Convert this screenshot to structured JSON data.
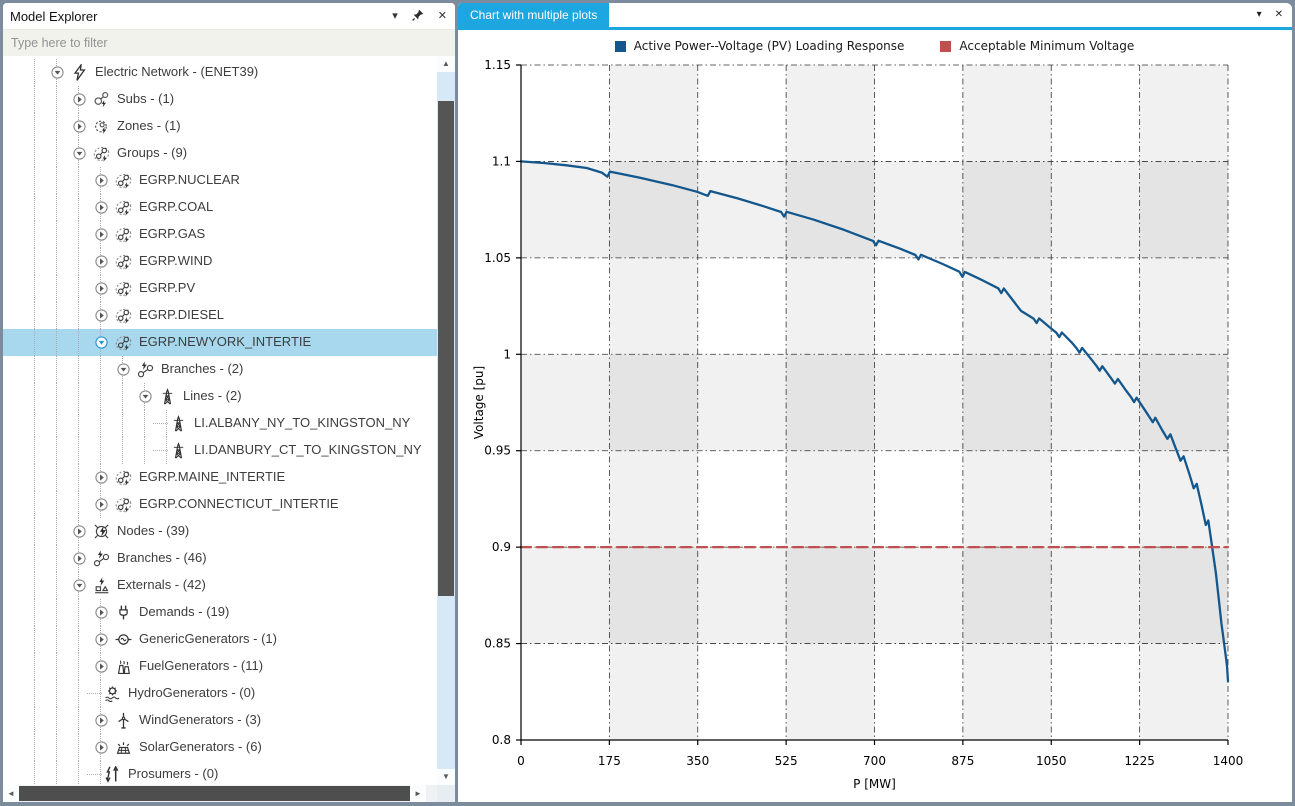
{
  "sidebar": {
    "title": "Model Explorer",
    "filter_placeholder": "Type here to filter",
    "controls": {
      "dropdown_glyph": "▾",
      "close_glyph": "✕"
    },
    "selection_color": "#a8d8ee",
    "tree": [
      {
        "label": "Electric Network - (ENET39)",
        "level": 0,
        "icon": "electric-network",
        "state": "expanded"
      },
      {
        "label": "Subs - (1)",
        "level": 1,
        "icon": "subs",
        "state": "collapsed"
      },
      {
        "label": "Zones - (1)",
        "level": 1,
        "icon": "zones",
        "state": "collapsed"
      },
      {
        "label": "Groups - (9)",
        "level": 1,
        "icon": "groups",
        "state": "expanded"
      },
      {
        "label": "EGRP.NUCLEAR",
        "level": 2,
        "icon": "group",
        "state": "collapsed"
      },
      {
        "label": "EGRP.COAL",
        "level": 2,
        "icon": "group",
        "state": "collapsed"
      },
      {
        "label": "EGRP.GAS",
        "level": 2,
        "icon": "group",
        "state": "collapsed"
      },
      {
        "label": "EGRP.WIND",
        "level": 2,
        "icon": "group",
        "state": "collapsed"
      },
      {
        "label": "EGRP.PV",
        "level": 2,
        "icon": "group",
        "state": "collapsed"
      },
      {
        "label": "EGRP.DIESEL",
        "level": 2,
        "icon": "group",
        "state": "collapsed"
      },
      {
        "label": "EGRP.NEWYORK_INTERTIE",
        "level": 2,
        "icon": "group",
        "state": "expanded",
        "selected": true
      },
      {
        "label": "Branches - (2)",
        "level": 3,
        "icon": "branches",
        "state": "expanded"
      },
      {
        "label": "Lines - (2)",
        "level": 4,
        "icon": "line",
        "state": "expanded"
      },
      {
        "label": "LI.ALBANY_NY_TO_KINGSTON_NY",
        "level": 5,
        "icon": "line",
        "state": "leaf"
      },
      {
        "label": "LI.DANBURY_CT_TO_KINGSTON_NY",
        "level": 5,
        "icon": "line",
        "state": "leaf"
      },
      {
        "label": "EGRP.MAINE_INTERTIE",
        "level": 2,
        "icon": "group",
        "state": "collapsed"
      },
      {
        "label": "EGRP.CONNECTICUT_INTERTIE",
        "level": 2,
        "icon": "group",
        "state": "collapsed"
      },
      {
        "label": "Nodes - (39)",
        "level": 1,
        "icon": "nodes",
        "state": "collapsed"
      },
      {
        "label": "Branches - (46)",
        "level": 1,
        "icon": "branches",
        "state": "collapsed"
      },
      {
        "label": "Externals - (42)",
        "level": 1,
        "icon": "externals",
        "state": "expanded"
      },
      {
        "label": "Demands - (19)",
        "level": 2,
        "icon": "demand",
        "state": "collapsed"
      },
      {
        "label": "GenericGenerators - (1)",
        "level": 2,
        "icon": "generic-generator",
        "state": "collapsed"
      },
      {
        "label": "FuelGenerators - (11)",
        "level": 2,
        "icon": "fuel-generator",
        "state": "collapsed"
      },
      {
        "label": "HydroGenerators - (0)",
        "level": 2,
        "icon": "hydro-generator",
        "state": "leaf"
      },
      {
        "label": "WindGenerators - (3)",
        "level": 2,
        "icon": "wind-generator",
        "state": "collapsed"
      },
      {
        "label": "SolarGenerators - (6)",
        "level": 2,
        "icon": "solar-generator",
        "state": "collapsed"
      },
      {
        "label": "Prosumers - (0)",
        "level": 2,
        "icon": "prosumer",
        "state": "leaf"
      }
    ]
  },
  "chart_panel": {
    "tab_label": "Chart with multiple plots",
    "tab_color": "#1ea6e0",
    "controls": {
      "dropdown_glyph": "▾",
      "close_glyph": "✕"
    }
  },
  "chart_data": {
    "type": "line",
    "xlabel": "P [MW]",
    "ylabel": "Voltage [pu]",
    "xlim": [
      0,
      1400
    ],
    "ylim": [
      0.8,
      1.15
    ],
    "xticks": [
      0,
      175,
      350,
      525,
      700,
      875,
      1050,
      1225,
      1400
    ],
    "yticks": [
      0.8,
      0.85,
      0.9,
      0.95,
      1,
      1.05,
      1.1,
      1.15
    ],
    "grid": "dash-dot",
    "legend_position": "top-center",
    "shading": {
      "band_color": "rgba(90,90,90,0.085)",
      "vertical_x": [
        [
          175,
          350
        ],
        [
          525,
          700
        ],
        [
          875,
          1050
        ],
        [
          1225,
          1400
        ]
      ],
      "horizontal_y": [
        [
          1.05,
          1.1
        ],
        [
          0.95,
          1.0
        ],
        [
          0.85,
          0.9
        ]
      ]
    },
    "series": [
      {
        "name": "Active Power--Voltage (PV) Loading Response",
        "color": "#14578c",
        "style": "solid",
        "points": [
          [
            0,
            1.1
          ],
          [
            45,
            1.0992
          ],
          [
            90,
            1.098
          ],
          [
            130,
            1.0966
          ],
          [
            160,
            1.0942
          ],
          [
            171,
            1.0921
          ],
          [
            176,
            1.0947
          ],
          [
            240,
            1.0913
          ],
          [
            300,
            1.0877
          ],
          [
            348,
            1.0843
          ],
          [
            370,
            1.0822
          ],
          [
            375,
            1.0846
          ],
          [
            430,
            1.0808
          ],
          [
            480,
            1.0768
          ],
          [
            515,
            1.0738
          ],
          [
            521,
            1.0714
          ],
          [
            526,
            1.0739
          ],
          [
            580,
            1.0698
          ],
          [
            640,
            1.0645
          ],
          [
            697,
            1.0588
          ],
          [
            703,
            1.0565
          ],
          [
            708,
            1.0589
          ],
          [
            750,
            1.0548
          ],
          [
            781,
            1.0515
          ],
          [
            787,
            1.0492
          ],
          [
            792,
            1.0516
          ],
          [
            835,
            1.0468
          ],
          [
            868,
            1.0428
          ],
          [
            874,
            1.0402
          ],
          [
            879,
            1.0427
          ],
          [
            915,
            1.0382
          ],
          [
            945,
            1.0342
          ],
          [
            951,
            1.0317
          ],
          [
            956,
            1.0341
          ],
          [
            990,
            1.0225
          ],
          [
            1015,
            1.0185
          ],
          [
            1021,
            1.0162
          ],
          [
            1026,
            1.0186
          ],
          [
            1048,
            1.0138
          ],
          [
            1060,
            1.0112
          ],
          [
            1066,
            1.0089
          ],
          [
            1071,
            1.0113
          ],
          [
            1090,
            1.0062
          ],
          [
            1100,
            1.0032
          ],
          [
            1106,
            1.0009
          ],
          [
            1111,
            1.0033
          ],
          [
            1130,
            0.9972
          ],
          [
            1140,
            0.9938
          ],
          [
            1146,
            0.9915
          ],
          [
            1151,
            0.9938
          ],
          [
            1168,
            0.9878
          ],
          [
            1176,
            0.9848
          ],
          [
            1182,
            0.9872
          ],
          [
            1198,
            0.9812
          ],
          [
            1208,
            0.9778
          ],
          [
            1214,
            0.9752
          ],
          [
            1219,
            0.9775
          ],
          [
            1235,
            0.9712
          ],
          [
            1245,
            0.9672
          ],
          [
            1251,
            0.9648
          ],
          [
            1256,
            0.9671
          ],
          [
            1270,
            0.9605
          ],
          [
            1280,
            0.9562
          ],
          [
            1286,
            0.9585
          ],
          [
            1298,
            0.9502
          ],
          [
            1306,
            0.9448
          ],
          [
            1312,
            0.9471
          ],
          [
            1324,
            0.9375
          ],
          [
            1332,
            0.9305
          ],
          [
            1338,
            0.9328
          ],
          [
            1348,
            0.9215
          ],
          [
            1356,
            0.9115
          ],
          [
            1361,
            0.9138
          ],
          [
            1369,
            0.8995
          ],
          [
            1376,
            0.8865
          ],
          [
            1382,
            0.8725
          ],
          [
            1387,
            0.8605
          ],
          [
            1391,
            0.8525
          ],
          [
            1394,
            0.8465
          ],
          [
            1396,
            0.8425
          ],
          [
            1398,
            0.8385
          ],
          [
            1400,
            0.8305
          ]
        ]
      },
      {
        "name": "Acceptable Minimum Voltage",
        "color": "#c0504d",
        "style": "dashed",
        "points": [
          [
            0,
            0.9
          ],
          [
            1400,
            0.9
          ]
        ]
      }
    ]
  }
}
